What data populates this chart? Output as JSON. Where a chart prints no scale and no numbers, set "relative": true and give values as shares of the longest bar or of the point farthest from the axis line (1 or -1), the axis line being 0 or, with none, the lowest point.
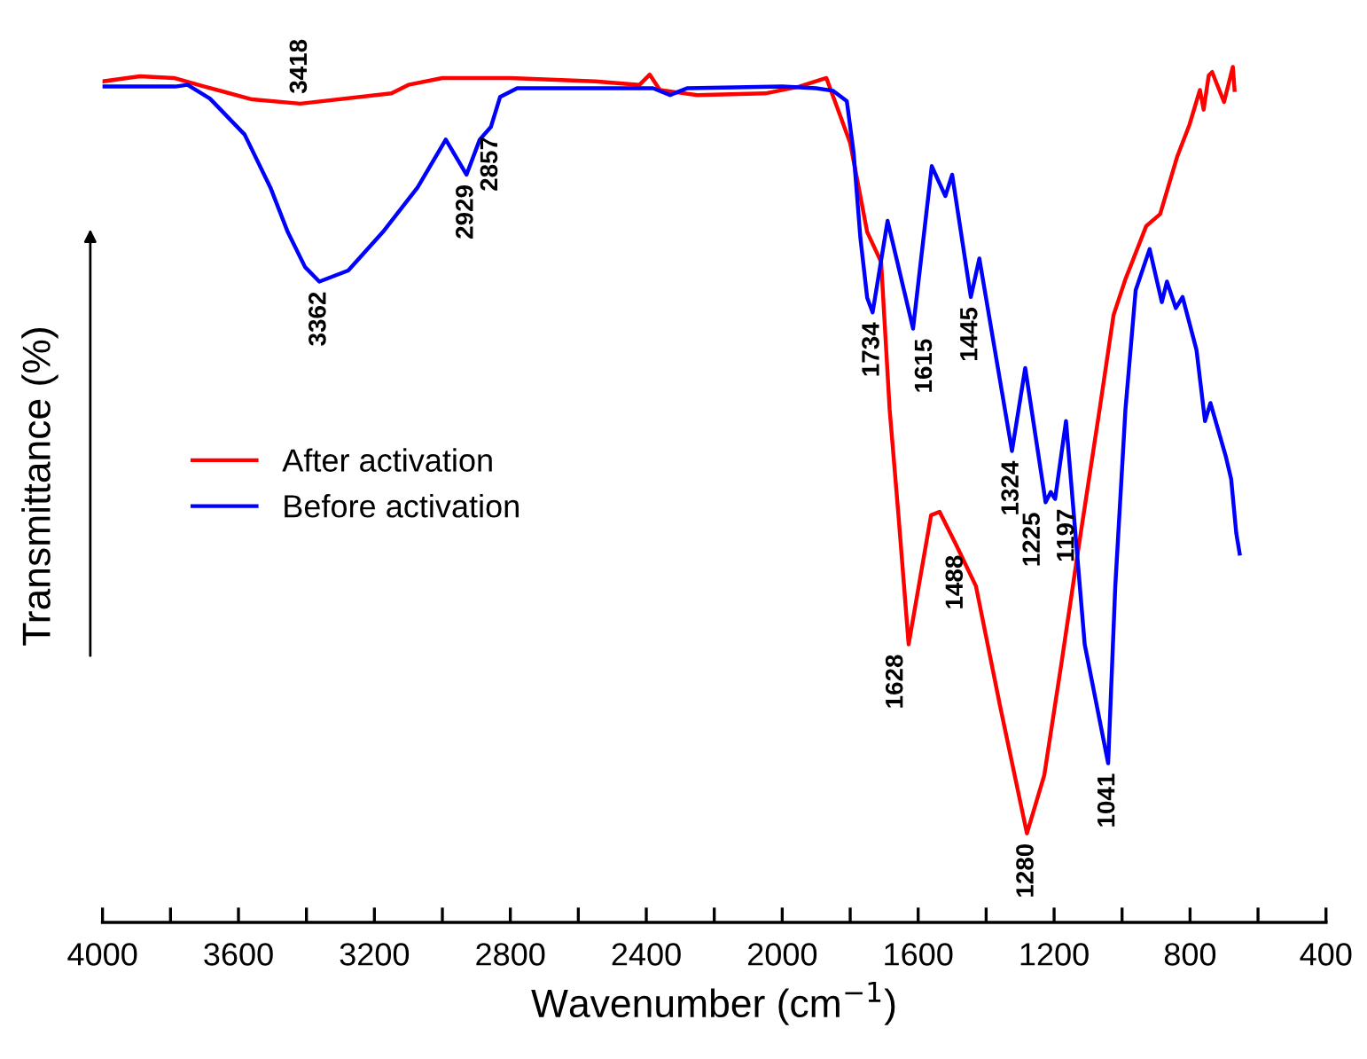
{
  "chart_data": {
    "type": "line",
    "relative": true,
    "xlabel": "Wavenumber (cm$^{−1}$)",
    "ylabel": "Transmittance (%)",
    "xlim": [
      4000,
      400
    ],
    "xticks": [
      4000,
      {
        "value": 3800,
        "label": null
      },
      3600,
      {
        "value": 3400,
        "label": null
      },
      3200,
      {
        "value": 3000,
        "label": null
      },
      2800,
      {
        "value": 2600,
        "label": null
      },
      2400,
      {
        "value": 2200,
        "label": null
      },
      2000,
      {
        "value": 1800,
        "label": null
      },
      1600,
      {
        "value": 1400,
        "label": null
      },
      1200,
      {
        "value": 1000,
        "label": null
      },
      800,
      {
        "value": 600,
        "label": null
      },
      400
    ],
    "grid": false,
    "legend": "center left",
    "marker": "none",
    "line_style": "solid",
    "series": [
      {
        "name": "After activation",
        "color": "#ff0000",
        "x": [
          4000,
          3890,
          3790,
          3700,
          3560,
          3418,
          3150,
          3100,
          3000,
          2800,
          2550,
          2420,
          2390,
          2360,
          2250,
          2050,
          1950,
          1870,
          1800,
          1750,
          1709,
          1684,
          1658,
          1628,
          1562,
          1537,
          1488,
          1430,
          1359,
          1280,
          1229,
          1178,
          1127,
          1066,
          1025,
          990,
          929,
          888,
          837,
          802,
          771,
          760,
          745,
          735,
          700,
          674,
          669
        ],
        "values": [
          0.983,
          0.989,
          0.987,
          0.977,
          0.962,
          0.957,
          0.969,
          0.979,
          0.987,
          0.987,
          0.983,
          0.979,
          0.991,
          0.973,
          0.967,
          0.969,
          0.977,
          0.987,
          0.911,
          0.807,
          0.772,
          0.6,
          0.476,
          0.325,
          0.476,
          0.48,
          0.441,
          0.393,
          0.253,
          0.104,
          0.172,
          0.304,
          0.441,
          0.6,
          0.71,
          0.752,
          0.814,
          0.828,
          0.896,
          0.932,
          0.973,
          0.95,
          0.99,
          0.994,
          0.959,
          1.0,
          0.973
        ]
      },
      {
        "name": "Before activation",
        "color": "#0000ff",
        "x": [
          4000,
          3786,
          3750,
          3684,
          3582,
          3506,
          3455,
          3404,
          3362,
          3277,
          3175,
          3073,
          2990,
          2929,
          2890,
          2857,
          2830,
          2780,
          2500,
          2380,
          2330,
          2280,
          2000,
          1900,
          1850,
          1810,
          1790,
          1770,
          1750,
          1734,
          1690,
          1615,
          1560,
          1520,
          1500,
          1445,
          1420,
          1324,
          1285,
          1225,
          1210,
          1197,
          1165,
          1110,
          1041,
          1020,
          990,
          960,
          919,
          883,
          868,
          842,
          822,
          781,
          756,
          740,
          695,
          679,
          664,
          654
        ],
        "values": [
          0.977,
          0.977,
          0.979,
          0.963,
          0.921,
          0.859,
          0.807,
          0.766,
          0.749,
          0.762,
          0.807,
          0.859,
          0.915,
          0.874,
          0.915,
          0.93,
          0.965,
          0.975,
          0.975,
          0.975,
          0.967,
          0.975,
          0.977,
          0.975,
          0.972,
          0.96,
          0.9,
          0.8,
          0.73,
          0.713,
          0.82,
          0.694,
          0.884,
          0.849,
          0.874,
          0.731,
          0.776,
          0.551,
          0.648,
          0.491,
          0.503,
          0.495,
          0.586,
          0.325,
          0.186,
          0.393,
          0.6,
          0.739,
          0.787,
          0.725,
          0.749,
          0.718,
          0.731,
          0.669,
          0.586,
          0.607,
          0.545,
          0.518,
          0.455,
          0.431
        ]
      }
    ],
    "annotations": [
      {
        "text": "3418",
        "x": 3418,
        "y": 0.957
      },
      {
        "text": "3362",
        "x": 3362,
        "y": 0.749
      },
      {
        "text": "2929",
        "x": 2929,
        "y": 0.874
      },
      {
        "text": "2857",
        "x": 2857,
        "y": 0.93
      },
      {
        "text": "1734",
        "x": 1734,
        "y": 0.713
      },
      {
        "text": "1615",
        "x": 1615,
        "y": 0.694
      },
      {
        "text": "1445",
        "x": 1445,
        "y": 0.731
      },
      {
        "text": "1324",
        "x": 1324,
        "y": 0.551
      },
      {
        "text": "1225",
        "x": 1225,
        "y": 0.491
      },
      {
        "text": "1197",
        "x": 1197,
        "y": 0.495
      },
      {
        "text": "1628",
        "x": 1628,
        "y": 0.325
      },
      {
        "text": "1488",
        "x": 1488,
        "y": 0.441
      },
      {
        "text": "1280",
        "x": 1280,
        "y": 0.104
      },
      {
        "text": "1041",
        "x": 1041,
        "y": 0.186
      }
    ]
  }
}
